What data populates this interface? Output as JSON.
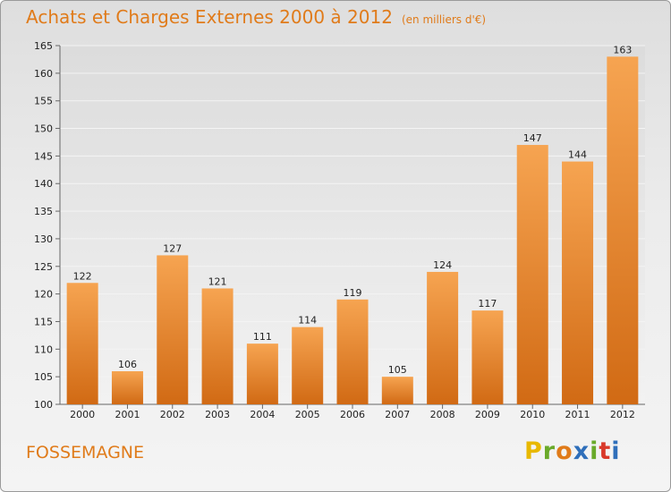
{
  "header": {
    "title": "Achats et Charges Externes 2000 à 2012",
    "subtitle": "(en milliers d'€)"
  },
  "footer": {
    "place": "FOSSEMAGNE",
    "logo_letters": [
      "P",
      "r",
      "o",
      "x",
      "i",
      "t",
      "i"
    ]
  },
  "colors": {
    "accent": "#e07b1a",
    "bar_light": "#f6a451",
    "bar_dark": "#d16a14",
    "logo": [
      "#e8b800",
      "#6aaa2a",
      "#e07b1a",
      "#2f6fba",
      "#6aaa2a",
      "#d93a2b",
      "#2f6fba"
    ]
  },
  "chart_data": {
    "type": "bar",
    "title": "Achats et Charges Externes 2000 à 2012",
    "subtitle": "(en milliers d'€)",
    "categories": [
      "2000",
      "2001",
      "2002",
      "2003",
      "2004",
      "2005",
      "2006",
      "2007",
      "2008",
      "2009",
      "2010",
      "2011",
      "2012"
    ],
    "values": [
      122,
      106,
      127,
      121,
      111,
      114,
      119,
      105,
      124,
      117,
      147,
      144,
      163
    ],
    "ylim": [
      100,
      165
    ],
    "yticks": [
      100,
      105,
      110,
      115,
      120,
      125,
      130,
      135,
      140,
      145,
      150,
      155,
      160,
      165
    ],
    "grid": true,
    "legend": "none"
  }
}
